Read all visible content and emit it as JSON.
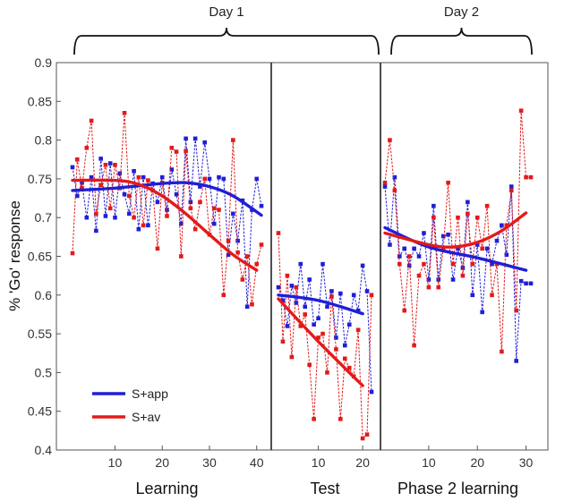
{
  "chart_data": {
    "type": "line",
    "ylabel": "% 'Go' response",
    "ylim": [
      0.4,
      0.9
    ],
    "yticks": [
      "0.4",
      "0.45",
      "0.5",
      "0.55",
      "0.6",
      "0.65",
      "0.7",
      "0.75",
      "0.8",
      "0.85",
      "0.9"
    ],
    "grid": false,
    "legend_position": "bottom-left",
    "brackets": [
      {
        "label": "Day 1",
        "from_segment": "learning",
        "to_segment": "test"
      },
      {
        "label": "Day 2",
        "from_segment": "phase2",
        "to_segment": "phase2"
      }
    ],
    "segments": [
      {
        "id": "learning",
        "label": "Learning",
        "x_range": [
          1,
          41
        ],
        "xticks": [
          10,
          20,
          30,
          40
        ],
        "series": [
          {
            "name": "S+app",
            "color": "#1f1fd6",
            "values": [
              0.765,
              0.728,
              0.745,
              0.7,
              0.752,
              0.683,
              0.776,
              0.702,
              0.77,
              0.7,
              0.757,
              0.73,
              0.705,
              0.76,
              0.685,
              0.752,
              0.69,
              0.744,
              0.72,
              0.752,
              0.71,
              0.762,
              0.73,
              0.692,
              0.802,
              0.72,
              0.802,
              0.74,
              0.797,
              0.75,
              0.692,
              0.752,
              0.75,
              0.652,
              0.705,
              0.67,
              0.722,
              0.585,
              0.71,
              0.75,
              0.715
            ],
            "fit": [
              [
                1,
                0.735
              ],
              [
                10,
                0.738
              ],
              [
                20,
                0.744
              ],
              [
                25,
                0.745
              ],
              [
                30,
                0.74
              ],
              [
                35,
                0.728
              ],
              [
                41,
                0.703
              ]
            ]
          },
          {
            "name": "S+av",
            "color": "#e31a1a",
            "values": [
              0.654,
              0.775,
              0.738,
              0.79,
              0.825,
              0.705,
              0.742,
              0.768,
              0.712,
              0.768,
              0.738,
              0.835,
              0.728,
              0.7,
              0.752,
              0.69,
              0.748,
              0.735,
              0.66,
              0.745,
              0.702,
              0.79,
              0.785,
              0.65,
              0.786,
              0.712,
              0.685,
              0.72,
              0.75,
              0.678,
              0.712,
              0.71,
              0.6,
              0.67,
              0.8,
              0.655,
              0.62,
              0.65,
              0.588,
              0.64,
              0.665
            ],
            "fit": [
              [
                1,
                0.748
              ],
              [
                10,
                0.748
              ],
              [
                15,
                0.743
              ],
              [
                20,
                0.728
              ],
              [
                25,
                0.705
              ],
              [
                30,
                0.678
              ],
              [
                35,
                0.652
              ],
              [
                40,
                0.632
              ]
            ]
          }
        ]
      },
      {
        "id": "test",
        "label": "Test",
        "x_range": [
          1,
          22
        ],
        "xticks": [
          10,
          20
        ],
        "series": [
          {
            "name": "S+app",
            "color": "#1f1fd6",
            "values": [
              0.61,
              0.593,
              0.56,
              0.612,
              0.59,
              0.64,
              0.585,
              0.62,
              0.562,
              0.57,
              0.64,
              0.585,
              0.605,
              0.545,
              0.602,
              0.535,
              0.562,
              0.6,
              0.58,
              0.638,
              0.605,
              0.475
            ],
            "fit": [
              [
                1,
                0.6
              ],
              [
                10,
                0.593
              ],
              [
                20,
                0.576
              ]
            ]
          },
          {
            "name": "S+av",
            "color": "#e31a1a",
            "values": [
              0.68,
              0.54,
              0.625,
              0.52,
              0.61,
              0.56,
              0.575,
              0.51,
              0.44,
              0.545,
              0.55,
              0.5,
              0.598,
              0.53,
              0.44,
              0.518,
              0.506,
              0.495,
              0.555,
              0.415,
              0.42,
              0.6
            ],
            "fit": [
              [
                1,
                0.595
              ],
              [
                10,
                0.54
              ],
              [
                20,
                0.483
              ]
            ]
          }
        ]
      },
      {
        "id": "phase2",
        "label": "Phase 2 learning",
        "x_range": [
          1,
          31
        ],
        "xticks": [
          10,
          20,
          30
        ],
        "series": [
          {
            "name": "S+app",
            "color": "#1f1fd6",
            "values": [
              0.74,
              0.665,
              0.752,
              0.65,
              0.66,
              0.638,
              0.66,
              0.65,
              0.68,
              0.62,
              0.715,
              0.62,
              0.676,
              0.678,
              0.62,
              0.66,
              0.635,
              0.72,
              0.6,
              0.665,
              0.578,
              0.66,
              0.64,
              0.67,
              0.69,
              0.652,
              0.74,
              0.515,
              0.618,
              0.615,
              0.615
            ],
            "fit": [
              [
                1,
                0.687
              ],
              [
                10,
                0.662
              ],
              [
                20,
                0.648
              ],
              [
                30,
                0.632
              ]
            ]
          },
          {
            "name": "S+av",
            "color": "#e31a1a",
            "values": [
              0.745,
              0.8,
              0.735,
              0.64,
              0.58,
              0.65,
              0.535,
              0.625,
              0.64,
              0.61,
              0.7,
              0.61,
              0.66,
              0.745,
              0.64,
              0.7,
              0.625,
              0.705,
              0.64,
              0.7,
              0.66,
              0.715,
              0.6,
              0.64,
              0.527,
              0.69,
              0.735,
              0.58,
              0.838,
              0.752,
              0.752
            ],
            "fit": [
              [
                1,
                0.68
              ],
              [
                10,
                0.665
              ],
              [
                15,
                0.662
              ],
              [
                20,
                0.668
              ],
              [
                25,
                0.683
              ],
              [
                30,
                0.706
              ]
            ]
          }
        ]
      }
    ],
    "legend": [
      {
        "name": "S+app",
        "color": "#1f1fd6"
      },
      {
        "name": "S+av",
        "color": "#e31a1a"
      }
    ]
  }
}
